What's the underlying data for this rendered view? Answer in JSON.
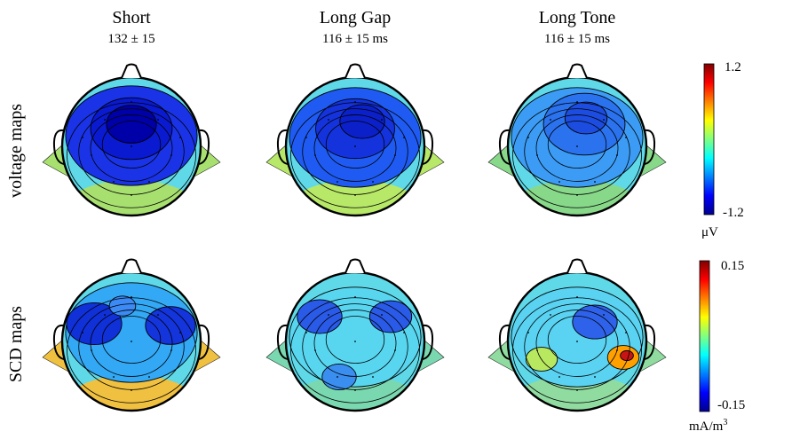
{
  "columns": [
    {
      "title": "Short",
      "subtitle": "132 ± 15"
    },
    {
      "title": "Long Gap",
      "subtitle": "116 ± 15 ms"
    },
    {
      "title": "Long Tone",
      "subtitle": "116 ± 15 ms"
    }
  ],
  "rows": [
    {
      "label": "voltage maps",
      "colorbar": {
        "max_label": "1.2",
        "min_label": "-1.2",
        "unit": "μV"
      }
    },
    {
      "label": "SCD maps",
      "colorbar": {
        "max_label": "0.15",
        "min_label": "-0.15",
        "unit": "mA/m",
        "unit_sup": "3"
      }
    }
  ],
  "colormap": [
    "#00008f",
    "#0000ff",
    "#0080ff",
    "#00ffff",
    "#80ff80",
    "#ffff00",
    "#ff8000",
    "#ff0000",
    "#800000"
  ]
}
